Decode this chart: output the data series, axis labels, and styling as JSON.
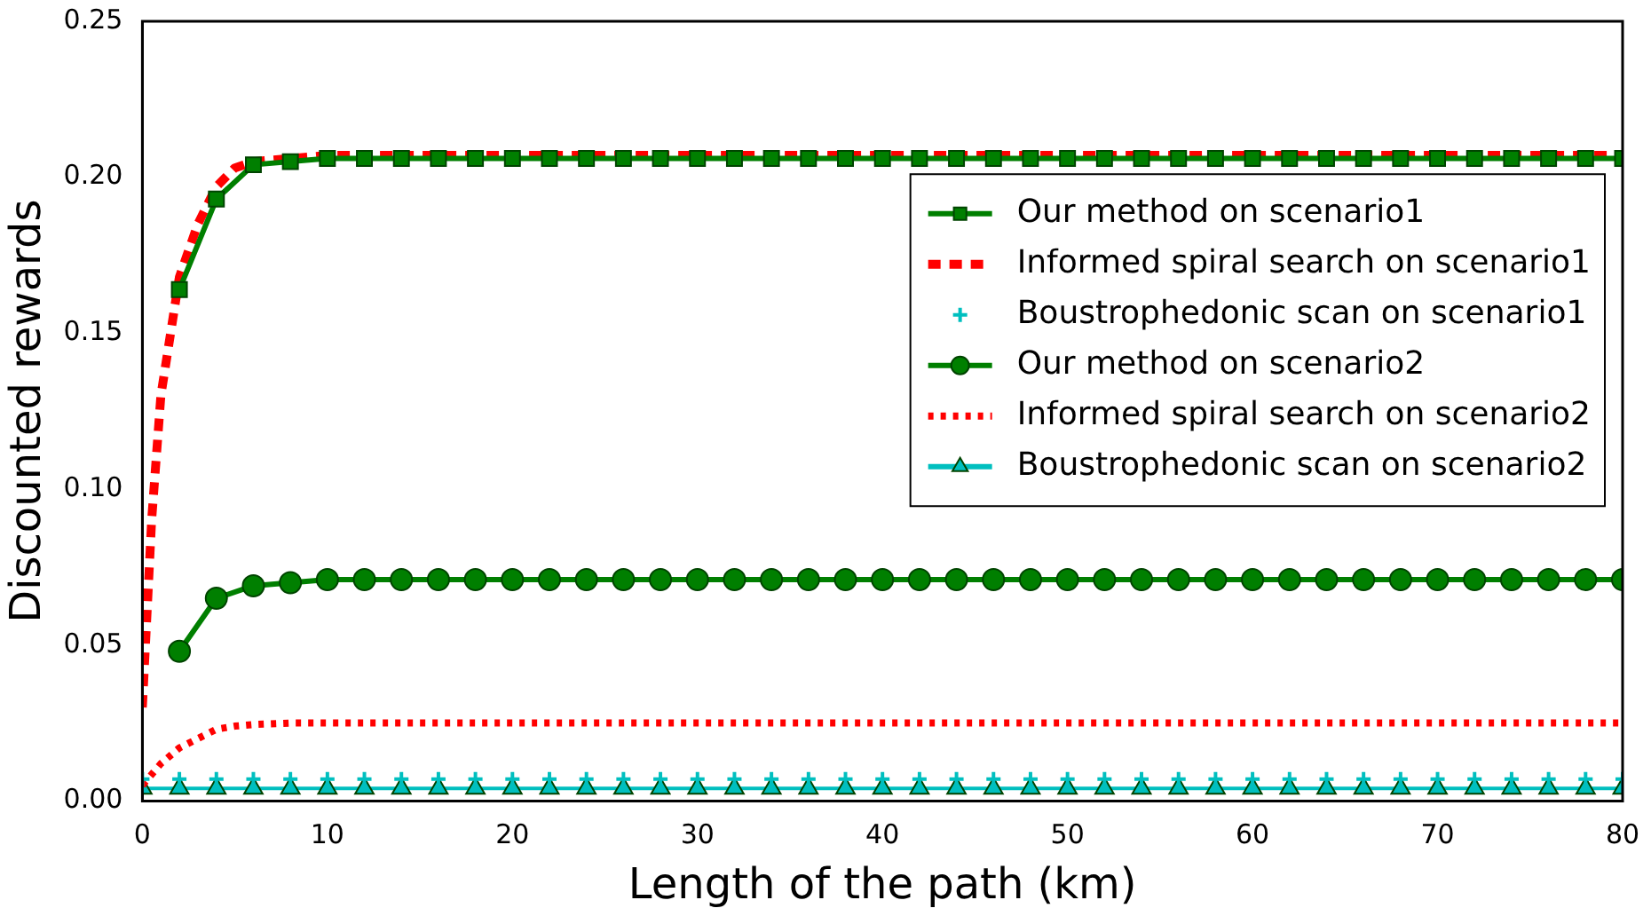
{
  "chart_data": {
    "type": "line",
    "xlabel": "Length of the path (km)",
    "ylabel": "Discounted rewards",
    "xlim": [
      0,
      80
    ],
    "ylim": [
      0,
      0.25
    ],
    "xticks": [
      0,
      10,
      20,
      30,
      40,
      50,
      60,
      70,
      80
    ],
    "yticks": [
      {
        "value": 0,
        "label": "0.00"
      },
      {
        "value": 0.05,
        "label": "0.05"
      },
      {
        "value": 0.1,
        "label": "0.10"
      },
      {
        "value": 0.15,
        "label": "0.15"
      },
      {
        "value": 0.2,
        "label": "0.20"
      },
      {
        "value": 0.25,
        "label": "0.25"
      }
    ],
    "grid": false,
    "legend": "right",
    "series": [
      {
        "name": "Our method on scenario1",
        "color": "#007f00",
        "marker": "square",
        "line_style": "solid",
        "x": [
          2,
          4,
          6,
          8,
          10,
          12,
          14,
          16,
          18,
          20,
          22,
          24,
          26,
          28,
          30,
          32,
          34,
          36,
          38,
          40,
          42,
          44,
          46,
          48,
          50,
          52,
          54,
          56,
          58,
          60,
          62,
          64,
          66,
          68,
          70,
          72,
          74,
          76,
          78,
          80
        ],
        "values": [
          0.164,
          0.193,
          0.204,
          0.205,
          0.206,
          0.206,
          0.206,
          0.206,
          0.206,
          0.206,
          0.206,
          0.206,
          0.206,
          0.206,
          0.206,
          0.206,
          0.206,
          0.206,
          0.206,
          0.206,
          0.206,
          0.206,
          0.206,
          0.206,
          0.206,
          0.206,
          0.206,
          0.206,
          0.206,
          0.206,
          0.206,
          0.206,
          0.206,
          0.206,
          0.206,
          0.206,
          0.206,
          0.206,
          0.206,
          0.206
        ]
      },
      {
        "name": "Informed spiral search on scenario1",
        "color": "#ff0000",
        "marker": "none",
        "line_style": "dashed",
        "x": [
          0,
          0.5,
          1,
          2,
          3,
          4,
          5,
          6,
          8,
          10,
          20,
          40,
          60,
          80
        ],
        "values": [
          0.03,
          0.09,
          0.13,
          0.168,
          0.185,
          0.197,
          0.203,
          0.205,
          0.206,
          0.207,
          0.207,
          0.207,
          0.207,
          0.207
        ]
      },
      {
        "name": "Boustrophedonic scan on scenario1",
        "color": "#00bfbf",
        "type": "scatter",
        "marker": "cross",
        "x": [
          0,
          2,
          4,
          6,
          8,
          10,
          12,
          14,
          16,
          18,
          20,
          22,
          24,
          26,
          28,
          30,
          32,
          34,
          36,
          38,
          40,
          42,
          44,
          46,
          48,
          50,
          52,
          54,
          56,
          58,
          60,
          62,
          64,
          66,
          68,
          70,
          72,
          74,
          76,
          78,
          80
        ],
        "values": [
          0.007,
          0.007,
          0.007,
          0.007,
          0.007,
          0.007,
          0.007,
          0.007,
          0.007,
          0.007,
          0.007,
          0.007,
          0.007,
          0.007,
          0.007,
          0.007,
          0.007,
          0.007,
          0.007,
          0.007,
          0.007,
          0.007,
          0.007,
          0.007,
          0.007,
          0.007,
          0.007,
          0.007,
          0.007,
          0.007,
          0.007,
          0.007,
          0.007,
          0.007,
          0.007,
          0.007,
          0.007,
          0.007,
          0.007,
          0.007,
          0.007
        ]
      },
      {
        "name": "Our method on scenario2",
        "color": "#007f00",
        "marker": "circle",
        "line_style": "solid",
        "x": [
          2,
          4,
          6,
          8,
          10,
          12,
          14,
          16,
          18,
          20,
          22,
          24,
          26,
          28,
          30,
          32,
          34,
          36,
          38,
          40,
          42,
          44,
          46,
          48,
          50,
          52,
          54,
          56,
          58,
          60,
          62,
          64,
          66,
          68,
          70,
          72,
          74,
          76,
          78,
          80
        ],
        "values": [
          0.048,
          0.065,
          0.069,
          0.07,
          0.071,
          0.071,
          0.071,
          0.071,
          0.071,
          0.071,
          0.071,
          0.071,
          0.071,
          0.071,
          0.071,
          0.071,
          0.071,
          0.071,
          0.071,
          0.071,
          0.071,
          0.071,
          0.071,
          0.071,
          0.071,
          0.071,
          0.071,
          0.071,
          0.071,
          0.071,
          0.071,
          0.071,
          0.071,
          0.071,
          0.071,
          0.071,
          0.071,
          0.071,
          0.071,
          0.071
        ]
      },
      {
        "name": "Informed spiral search on scenario2",
        "color": "#ff0000",
        "marker": "none",
        "line_style": "dotted",
        "x": [
          0,
          1,
          2,
          3,
          4,
          5,
          6,
          8,
          10,
          20,
          40,
          60,
          80
        ],
        "values": [
          0.005,
          0.012,
          0.017,
          0.02,
          0.023,
          0.024,
          0.0245,
          0.025,
          0.025,
          0.025,
          0.025,
          0.025,
          0.025
        ]
      },
      {
        "name": "Boustrophedonic scan on scenario2",
        "color": "#00bfbf",
        "marker": "triangle",
        "line_style": "solid",
        "x": [
          0,
          2,
          4,
          6,
          8,
          10,
          12,
          14,
          16,
          18,
          20,
          22,
          24,
          26,
          28,
          30,
          32,
          34,
          36,
          38,
          40,
          42,
          44,
          46,
          48,
          50,
          52,
          54,
          56,
          58,
          60,
          62,
          64,
          66,
          68,
          70,
          72,
          74,
          76,
          78,
          80
        ],
        "values": [
          0.004,
          0.004,
          0.004,
          0.004,
          0.004,
          0.004,
          0.004,
          0.004,
          0.004,
          0.004,
          0.004,
          0.004,
          0.004,
          0.004,
          0.004,
          0.004,
          0.004,
          0.004,
          0.004,
          0.004,
          0.004,
          0.004,
          0.004,
          0.004,
          0.004,
          0.004,
          0.004,
          0.004,
          0.004,
          0.004,
          0.004,
          0.004,
          0.004,
          0.004,
          0.004,
          0.004,
          0.004,
          0.004,
          0.004,
          0.004,
          0.004
        ]
      }
    ]
  }
}
